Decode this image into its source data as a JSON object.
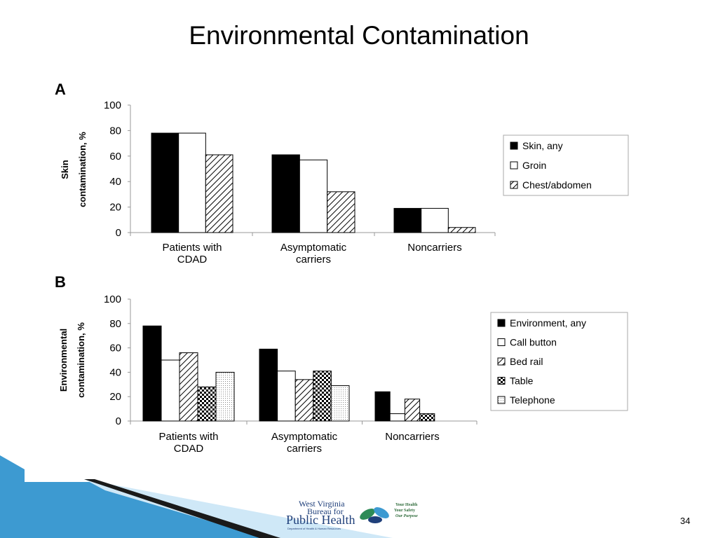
{
  "slide": {
    "title": "Environmental Contamination",
    "page_number": "34"
  },
  "logo": {
    "line1": "West Virginia",
    "line2": "Bureau for",
    "line3": "Public Health",
    "subline": "Department of Health & Human Resources",
    "tagline1": "Your Health",
    "tagline2": "Your Safety",
    "tagline3": "Our Purpose"
  },
  "colors": {
    "accent_blue": "#3d9ad1",
    "accent_light": "#cfe8f7",
    "dark_band": "#1a1a1a"
  },
  "chart_data": [
    {
      "type": "bar",
      "panel_label": "A",
      "title": "",
      "xlabel": "",
      "ylabel": "Skin contamination, %",
      "ylim": [
        0,
        100
      ],
      "yticks": [
        0,
        20,
        40,
        60,
        80,
        100
      ],
      "categories": [
        "Patients with CDAD",
        "Asymptomatic carriers",
        "Noncarriers"
      ],
      "series": [
        {
          "name": "Skin, any",
          "pattern": "solid",
          "values": [
            78,
            61,
            19
          ]
        },
        {
          "name": "Groin",
          "pattern": "white",
          "values": [
            78,
            57,
            19
          ]
        },
        {
          "name": "Chest/abdomen",
          "pattern": "hatch",
          "values": [
            61,
            32,
            4
          ]
        }
      ],
      "legend_position": "right"
    },
    {
      "type": "bar",
      "panel_label": "B",
      "title": "",
      "xlabel": "",
      "ylabel": "Environmental contamination, %",
      "ylim": [
        0,
        100
      ],
      "yticks": [
        0,
        20,
        40,
        60,
        80,
        100
      ],
      "categories": [
        "Patients with CDAD",
        "Asymptomatic carriers",
        "Noncarriers"
      ],
      "series": [
        {
          "name": "Environment, any",
          "pattern": "solid",
          "values": [
            78,
            59,
            24
          ]
        },
        {
          "name": "Call button",
          "pattern": "white",
          "values": [
            50,
            41,
            6
          ]
        },
        {
          "name": "Bed rail",
          "pattern": "hatch",
          "values": [
            56,
            34,
            18
          ]
        },
        {
          "name": "Table",
          "pattern": "check",
          "values": [
            28,
            41,
            6
          ]
        },
        {
          "name": "Telephone",
          "pattern": "dots",
          "values": [
            40,
            29,
            null
          ]
        }
      ],
      "legend_position": "right"
    }
  ]
}
